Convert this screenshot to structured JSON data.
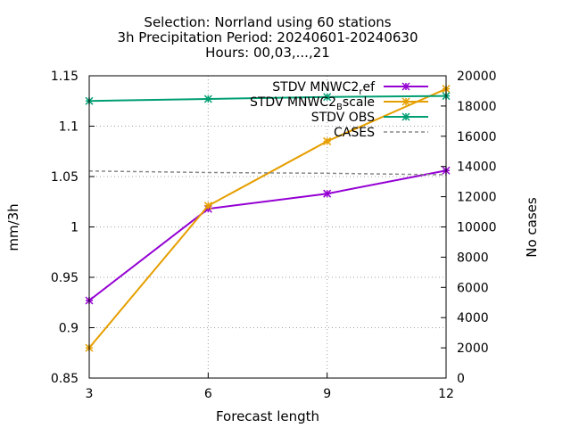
{
  "chart_data": {
    "type": "line",
    "title_lines": [
      "Selection: Norrland using    60 stations",
      "3h Precipitation   Period: 20240601-20240630",
      "Hours: 00,03,...,21"
    ],
    "xlabel": "Forecast length",
    "ylabel": "mm/3h",
    "y2label": "No cases",
    "x": [
      3,
      6,
      9,
      12
    ],
    "xlim": [
      3,
      12
    ],
    "ylim": [
      0.85,
      1.15
    ],
    "y2lim": [
      0,
      20000
    ],
    "xticks": [
      "3",
      "6",
      "9",
      "12"
    ],
    "yticks": [
      "0.85",
      "0.9",
      "0.95",
      "1",
      "1.05",
      "1.1",
      "1.15"
    ],
    "y2ticks": [
      "0",
      "2000",
      "4000",
      "6000",
      "8000",
      "10000",
      "12000",
      "14000",
      "16000",
      "18000",
      "20000"
    ],
    "grid": true,
    "legend_position": "top-right",
    "series": [
      {
        "name": "STDV MNWC2_ref",
        "legend_base": "STDV MNWC2",
        "legend_sub": "r",
        "legend_rest": "ef",
        "axis": "y",
        "color": "#9400d3",
        "marker": "asterisk",
        "values": [
          0.927,
          1.018,
          1.033,
          1.056
        ]
      },
      {
        "name": "STDV MNWC2_Bscale",
        "legend_base": "STDV MNWC2",
        "legend_sub": "B",
        "legend_rest": "scale",
        "axis": "y",
        "color": "#e69f00",
        "marker": "asterisk",
        "values": [
          0.88,
          1.021,
          1.085,
          1.137
        ]
      },
      {
        "name": "STDV OBS",
        "legend_base": "STDV OBS",
        "legend_sub": "",
        "legend_rest": "",
        "axis": "y",
        "color": "#009e73",
        "marker": "asterisk",
        "values": [
          1.125,
          1.127,
          1.129,
          1.13
        ]
      },
      {
        "name": "CASES",
        "legend_base": "CASES",
        "legend_sub": "",
        "legend_rest": "",
        "axis": "y2",
        "color": "#888888",
        "marker": "none",
        "dashed": true,
        "values": [
          13700,
          13600,
          13550,
          13450
        ]
      }
    ]
  }
}
